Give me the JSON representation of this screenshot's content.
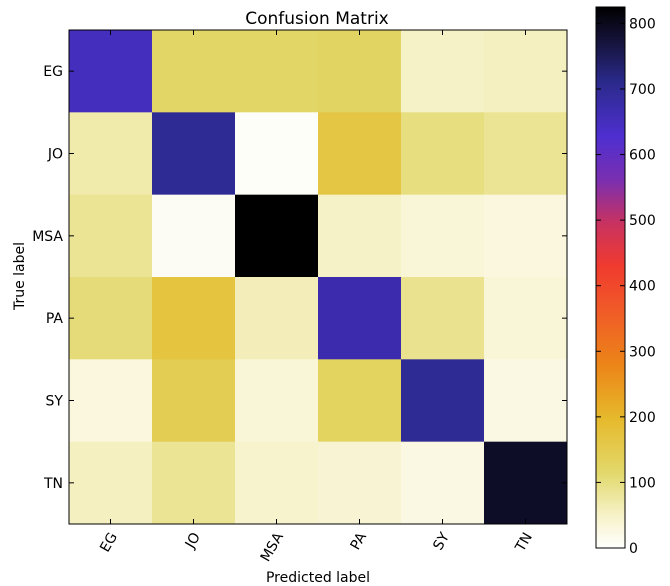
{
  "chart_data": {
    "type": "heatmap",
    "title": "Confusion Matrix",
    "xlabel": "Predicted label",
    "ylabel": "True label",
    "x_categories": [
      "EG",
      "JO",
      "MSA",
      "PA",
      "SY",
      "TN"
    ],
    "y_categories": [
      "EG",
      "JO",
      "MSA",
      "PA",
      "SY",
      "TN"
    ],
    "values": [
      [
        650,
        120,
        120,
        125,
        50,
        55
      ],
      [
        70,
        700,
        5,
        165,
        100,
        85
      ],
      [
        85,
        10,
        825,
        50,
        35,
        30
      ],
      [
        105,
        170,
        60,
        670,
        90,
        35
      ],
      [
        30,
        145,
        35,
        130,
        700,
        25
      ],
      [
        55,
        85,
        45,
        40,
        25,
        790
      ]
    ],
    "colorbar": {
      "min": 0,
      "max": 825,
      "ticks": [
        0,
        100,
        200,
        300,
        400,
        500,
        600,
        700,
        800
      ],
      "colormap": "CMRmap_r"
    },
    "grid": false
  }
}
